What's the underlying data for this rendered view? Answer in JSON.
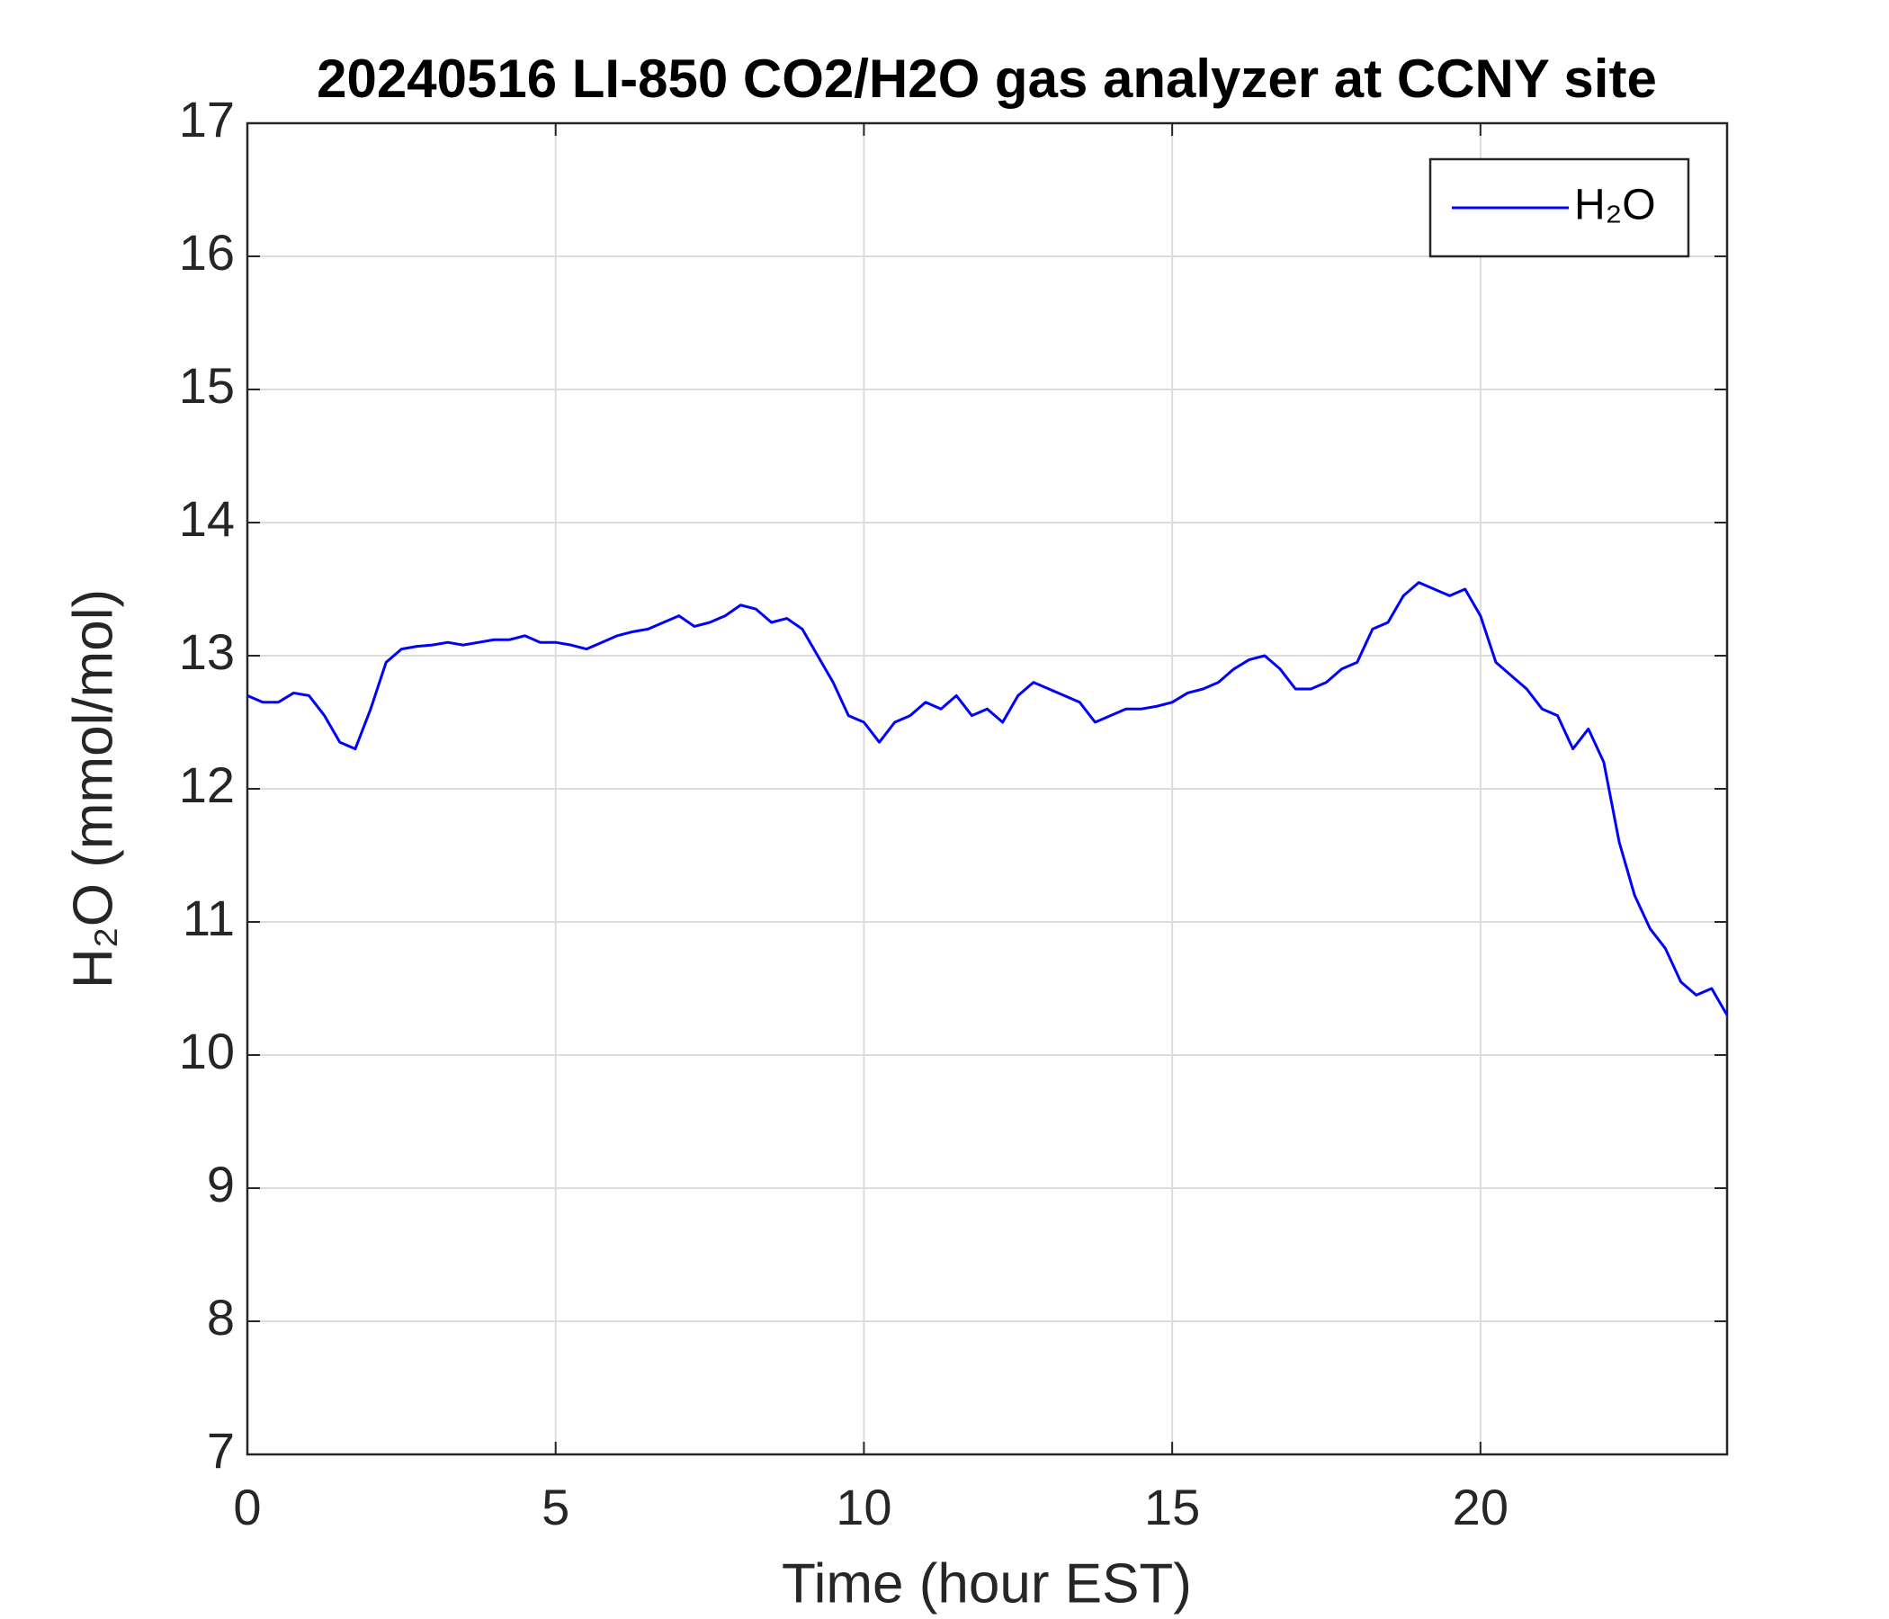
{
  "chart_data": {
    "type": "line",
    "title": "20240516 LI-850 CO2/H2O gas analyzer at CCNY site",
    "x_label": "Time (hour EST)",
    "y_label": "H₂O (mmol/mol)",
    "x": [
      0,
      0.25,
      0.5,
      0.75,
      1,
      1.25,
      1.5,
      1.75,
      2,
      2.25,
      2.5,
      2.75,
      3,
      3.25,
      3.5,
      3.75,
      4,
      4.25,
      4.5,
      4.75,
      5,
      5.25,
      5.5,
      5.75,
      6,
      6.25,
      6.5,
      6.75,
      7,
      7.25,
      7.5,
      7.75,
      8,
      8.25,
      8.5,
      8.75,
      9,
      9.25,
      9.5,
      9.75,
      10,
      10.25,
      10.5,
      10.75,
      11,
      11.25,
      11.5,
      11.75,
      12,
      12.25,
      12.5,
      12.75,
      13,
      13.25,
      13.5,
      13.75,
      14,
      14.25,
      14.5,
      14.75,
      15,
      15.25,
      15.5,
      15.75,
      16,
      16.25,
      16.5,
      16.75,
      17,
      17.25,
      17.5,
      17.75,
      18,
      18.25,
      18.5,
      18.75,
      19,
      19.25,
      19.5,
      19.75,
      20,
      20.25,
      20.5,
      20.75,
      21,
      21.25,
      21.5,
      21.75,
      22,
      22.25,
      22.5,
      22.75,
      23,
      23.25,
      23.5,
      23.75,
      24
    ],
    "series": [
      {
        "name": "H₂O",
        "color": "#0000ff",
        "values": [
          12.7,
          12.65,
          12.65,
          12.72,
          12.7,
          12.55,
          12.35,
          12.3,
          12.6,
          12.95,
          13.05,
          13.07,
          13.08,
          13.1,
          13.08,
          13.1,
          13.12,
          13.12,
          13.15,
          13.1,
          13.1,
          13.08,
          13.05,
          13.1,
          13.15,
          13.18,
          13.2,
          13.25,
          13.3,
          13.22,
          13.25,
          13.3,
          13.38,
          13.35,
          13.25,
          13.28,
          13.2,
          13.0,
          12.8,
          12.55,
          12.5,
          12.35,
          12.5,
          12.55,
          12.65,
          12.6,
          12.7,
          12.55,
          12.6,
          12.5,
          12.7,
          12.8,
          12.75,
          12.7,
          12.65,
          12.5,
          12.55,
          12.6,
          12.6,
          12.62,
          12.65,
          12.72,
          12.75,
          12.8,
          12.9,
          12.97,
          13.0,
          12.9,
          12.75,
          12.75,
          12.8,
          12.9,
          12.95,
          13.2,
          13.25,
          13.45,
          13.55,
          13.5,
          13.45,
          13.5,
          13.3,
          12.95,
          12.85,
          12.75,
          12.6,
          12.55,
          12.3,
          12.45,
          12.2,
          11.6,
          11.2,
          10.95,
          10.8,
          10.55,
          10.45,
          10.5,
          10.3
        ]
      }
    ],
    "xlim": [
      0,
      24
    ],
    "xticks": [
      0,
      5,
      10,
      15,
      20
    ],
    "ylim": [
      7,
      17
    ],
    "yticks": [
      7,
      8,
      9,
      10,
      11,
      12,
      13,
      14,
      15,
      16,
      17
    ],
    "grid": true,
    "legend": "upper right"
  }
}
